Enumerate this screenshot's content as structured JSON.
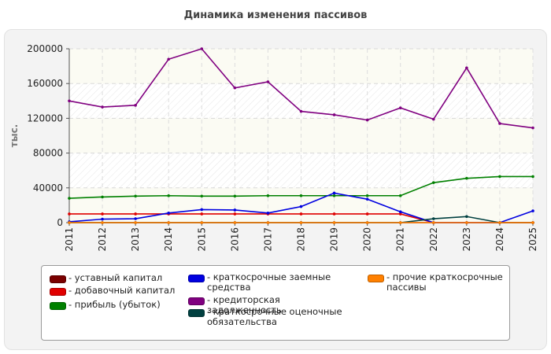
{
  "title": "Динамика изменения пассивов",
  "chart_data": {
    "type": "line",
    "ylabel": "тыс.",
    "xlabel": "",
    "x": [
      "2011",
      "2012",
      "2013",
      "2014",
      "2015",
      "2016",
      "2017",
      "2018",
      "2019",
      "2020",
      "2021",
      "2022",
      "2023",
      "2024",
      "2025"
    ],
    "ylim": [
      0,
      200000
    ],
    "yticks": [
      "0",
      "40000",
      "80000",
      "120000",
      "160000",
      "200000"
    ],
    "grid": true,
    "legend_position": "bottom",
    "series": [
      {
        "name": "- уставный капитал",
        "color": "#7a0000",
        "values": [
          0,
          0,
          0,
          0,
          0,
          0,
          0,
          0,
          0,
          0,
          0,
          0,
          0,
          0,
          0
        ]
      },
      {
        "name": "- добавочный капитал",
        "color": "#e00000",
        "values": [
          10000,
          10000,
          10000,
          10000,
          10000,
          10000,
          10000,
          10000,
          10000,
          10000,
          10000,
          0,
          0,
          0,
          0
        ]
      },
      {
        "name": "- прибыль (убыток)",
        "color": "#008000",
        "values": [
          28000,
          29500,
          30500,
          31000,
          30500,
          30500,
          31000,
          31000,
          31000,
          31000,
          31000,
          46000,
          51000,
          53000,
          53000
        ]
      },
      {
        "name": "- краткосрочные заемные средства",
        "color": "#0000e0",
        "values": [
          1000,
          4000,
          4500,
          11000,
          15000,
          14500,
          11000,
          18500,
          34000,
          27000,
          12500,
          0,
          0,
          0,
          13500
        ]
      },
      {
        "name": "- кредиторская задолженность",
        "color": "#800080",
        "values": [
          140000,
          133000,
          135000,
          188000,
          200000,
          155000,
          162000,
          128000,
          124000,
          118000,
          132000,
          119000,
          178000,
          114000,
          109000
        ]
      },
      {
        "name": "- краткосрочные оценочные обязательства",
        "color": "#004040",
        "values": [
          0,
          0,
          0,
          0,
          0,
          0,
          0,
          0,
          0,
          0,
          0,
          4500,
          7000,
          0,
          0
        ]
      },
      {
        "name": "- прочие краткосрочные пассивы",
        "color": "#ff8000",
        "values": [
          0,
          0,
          0,
          0,
          0,
          0,
          0,
          0,
          0,
          0,
          0,
          0,
          0,
          0,
          0
        ]
      }
    ]
  },
  "legend_layout": [
    {
      "series": 0,
      "col": 0,
      "row": 0
    },
    {
      "series": 1,
      "col": 0,
      "row": 1
    },
    {
      "series": 2,
      "col": 0,
      "row": 2
    },
    {
      "series": 3,
      "col": 1,
      "row": 0
    },
    {
      "series": 4,
      "col": 1,
      "row": 2
    },
    {
      "series": 5,
      "col": 1,
      "row": 3
    },
    {
      "series": 6,
      "col": 2,
      "row": 0
    }
  ]
}
